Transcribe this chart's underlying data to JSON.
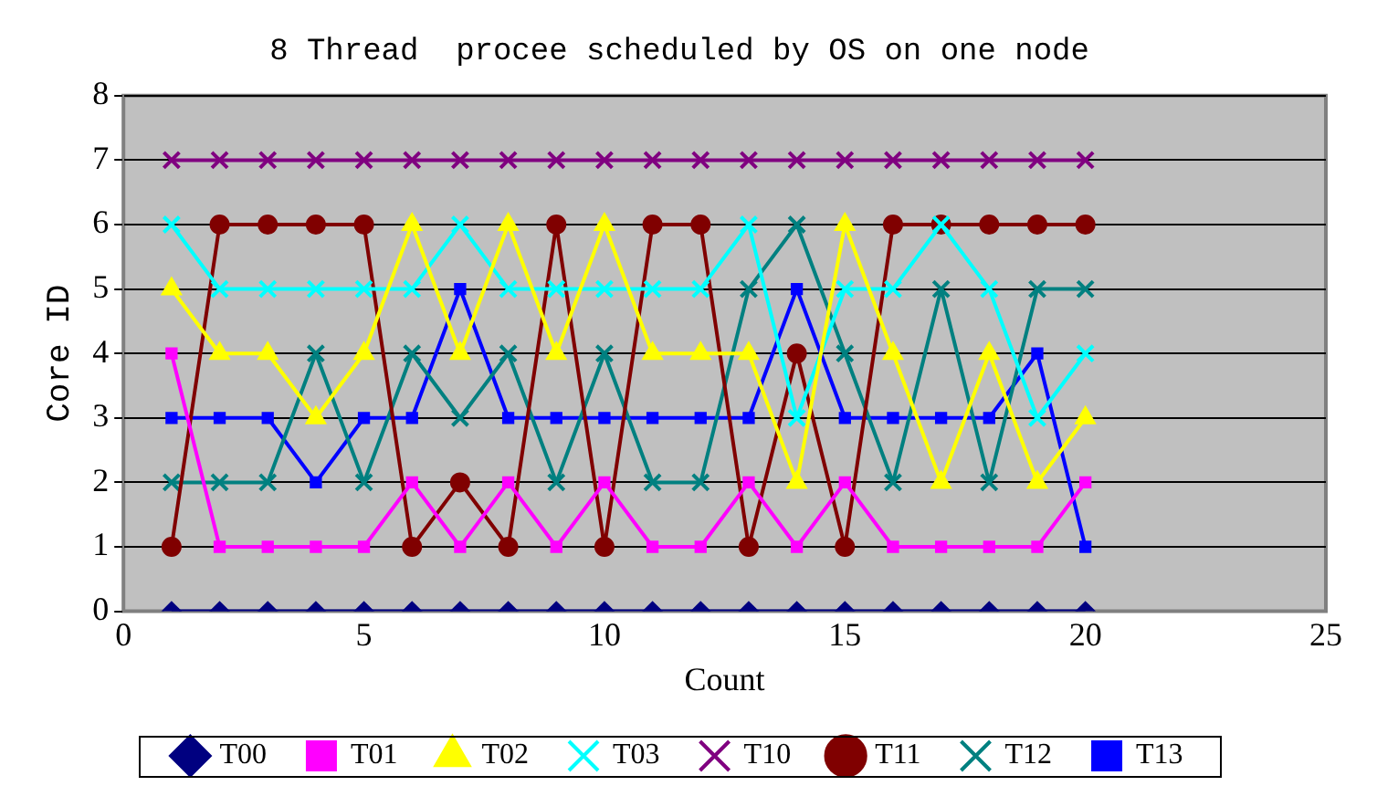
{
  "chart_data": {
    "type": "line",
    "title": "8 Thread  procee scheduled by OS on one node",
    "xlabel": "Count",
    "ylabel": "Core ID",
    "x": [
      1,
      2,
      3,
      4,
      5,
      6,
      7,
      8,
      9,
      10,
      11,
      12,
      13,
      14,
      15,
      16,
      17,
      18,
      19,
      20
    ],
    "xlim": [
      0,
      25
    ],
    "xticks": [
      0,
      5,
      10,
      15,
      20,
      25
    ],
    "ylim": [
      0,
      8
    ],
    "yticks": [
      0,
      1,
      2,
      3,
      4,
      5,
      6,
      7,
      8
    ],
    "grid": "y",
    "legend": "bottom",
    "series": [
      {
        "name": "T00",
        "color": "#000080",
        "marker": "diamond",
        "values": [
          0,
          0,
          0,
          0,
          0,
          0,
          0,
          0,
          0,
          0,
          0,
          0,
          0,
          0,
          0,
          0,
          0,
          0,
          0,
          0
        ]
      },
      {
        "name": "T01",
        "color": "#ff00ff",
        "marker": "square",
        "values": [
          4,
          1,
          1,
          1,
          1,
          2,
          1,
          2,
          1,
          2,
          1,
          1,
          2,
          1,
          2,
          1,
          1,
          1,
          1,
          2
        ]
      },
      {
        "name": "T02",
        "color": "#ffff00",
        "marker": "triangle",
        "values": [
          5,
          4,
          4,
          3,
          4,
          6,
          4,
          6,
          4,
          6,
          4,
          4,
          4,
          2,
          6,
          4,
          2,
          4,
          2,
          3
        ]
      },
      {
        "name": "T03",
        "color": "#00ffff",
        "marker": "cross",
        "values": [
          6,
          5,
          5,
          5,
          5,
          5,
          6,
          5,
          5,
          5,
          5,
          5,
          6,
          3,
          5,
          5,
          6,
          5,
          3,
          4
        ]
      },
      {
        "name": "T10",
        "color": "#800080",
        "marker": "cross",
        "values": [
          7,
          7,
          7,
          7,
          7,
          7,
          7,
          7,
          7,
          7,
          7,
          7,
          7,
          7,
          7,
          7,
          7,
          7,
          7,
          7
        ]
      },
      {
        "name": "T11",
        "color": "#800000",
        "marker": "circle",
        "values": [
          1,
          6,
          6,
          6,
          6,
          1,
          2,
          1,
          6,
          1,
          6,
          6,
          1,
          4,
          1,
          6,
          6,
          6,
          6,
          6
        ]
      },
      {
        "name": "T12",
        "color": "#008080",
        "marker": "cross",
        "values": [
          2,
          2,
          2,
          4,
          2,
          4,
          3,
          4,
          2,
          4,
          2,
          2,
          5,
          6,
          4,
          2,
          5,
          2,
          5,
          5
        ]
      },
      {
        "name": "T13",
        "color": "#0000ff",
        "marker": "square",
        "values": [
          3,
          3,
          3,
          2,
          3,
          3,
          5,
          3,
          3,
          3,
          3,
          3,
          3,
          5,
          3,
          3,
          3,
          3,
          4,
          1
        ]
      }
    ]
  }
}
